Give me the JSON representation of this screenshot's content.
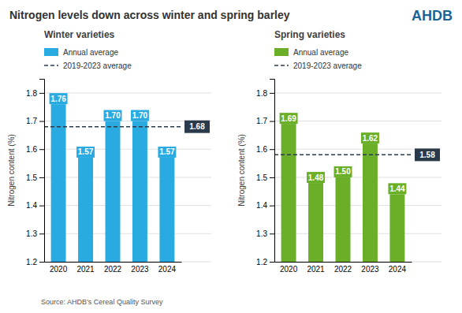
{
  "chart_data": [
    {
      "type": "bar",
      "title": "Nitrogen levels down across winter and spring barley",
      "subtitle": "Winter varieties",
      "y_label": "Nitrogen content (%)",
      "categories": [
        "2020",
        "2021",
        "2022",
        "2023",
        "2024"
      ],
      "series": [
        {
          "name": "Annual average",
          "color": "#29ABE2",
          "values": [
            1.76,
            1.57,
            1.7,
            1.7,
            1.57
          ],
          "value_labels": [
            "1.76",
            "1.57",
            "1.70",
            "1.70",
            "1.57"
          ]
        }
      ],
      "average": {
        "name": "2019-2023 average",
        "value": 1.68,
        "color": "#2B3A4A",
        "line_style": "dashed"
      },
      "ylim": [
        1.2,
        1.85
      ],
      "yticks": [
        1.2,
        1.3,
        1.4,
        1.5,
        1.6,
        1.7,
        1.8
      ],
      "grid": true,
      "legend": "top",
      "data_labels": true,
      "annotations": [
        "Source: AHDB’s Cereal Quality Survey",
        "AHDB"
      ]
    },
    {
      "type": "bar",
      "subtitle": "Spring varieties",
      "y_label": "Nitrogen content (%)",
      "categories": [
        "2020",
        "2021",
        "2022",
        "2023",
        "2024"
      ],
      "series": [
        {
          "name": "Annual average",
          "color": "#6AAF27",
          "values": [
            1.69,
            1.48,
            1.5,
            1.62,
            1.44
          ],
          "value_labels": [
            "1.69",
            "1.48",
            "1.50",
            "1.62",
            "1.44"
          ]
        }
      ],
      "average": {
        "name": "2019-2023 average",
        "value": 1.58,
        "color": "#2B3A4A",
        "line_style": "dashed"
      },
      "ylim": [
        1.2,
        1.85
      ],
      "yticks": [
        1.2,
        1.3,
        1.4,
        1.5,
        1.6,
        1.7,
        1.8
      ],
      "grid": true,
      "legend": "top",
      "data_labels": true
    }
  ]
}
